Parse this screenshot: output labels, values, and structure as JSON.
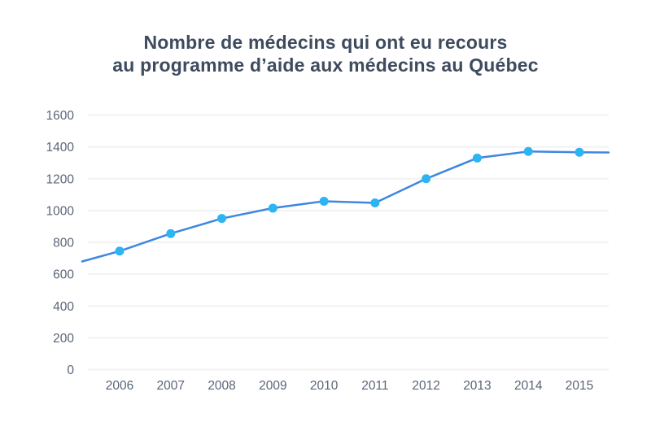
{
  "title": {
    "line1": "Nombre de médecins qui ont eu recours",
    "line2": "au programme d’aide aux médecins au Québec"
  },
  "chart_data": {
    "type": "line",
    "title": "Nombre de médecins qui ont eu recours au programme d’aide aux médecins au Québec",
    "categories": [
      "2006",
      "2007",
      "2008",
      "2009",
      "2010",
      "2011",
      "2012",
      "2013",
      "2014",
      "2015"
    ],
    "series": [
      {
        "name": "Nombre de médecins",
        "values": [
          745,
          855,
          950,
          1015,
          1058,
          1048,
          1200,
          1330,
          1371,
          1366
        ]
      }
    ],
    "edge_extension": {
      "left_value": 680,
      "right_value": 1365
    },
    "xlabel": "",
    "ylabel": "",
    "ylim": [
      0,
      1600
    ],
    "yticks": [
      0,
      200,
      400,
      600,
      800,
      1000,
      1200,
      1400,
      1600
    ],
    "grid": "horizontal",
    "legend": "none",
    "colors": {
      "line": "#3E87E0",
      "marker": "#2CB5F2",
      "grid": "#F2F2F2",
      "axis_text": "#5A6578",
      "title_text": "#3E4B5F",
      "background": "#FFFFFF"
    }
  }
}
